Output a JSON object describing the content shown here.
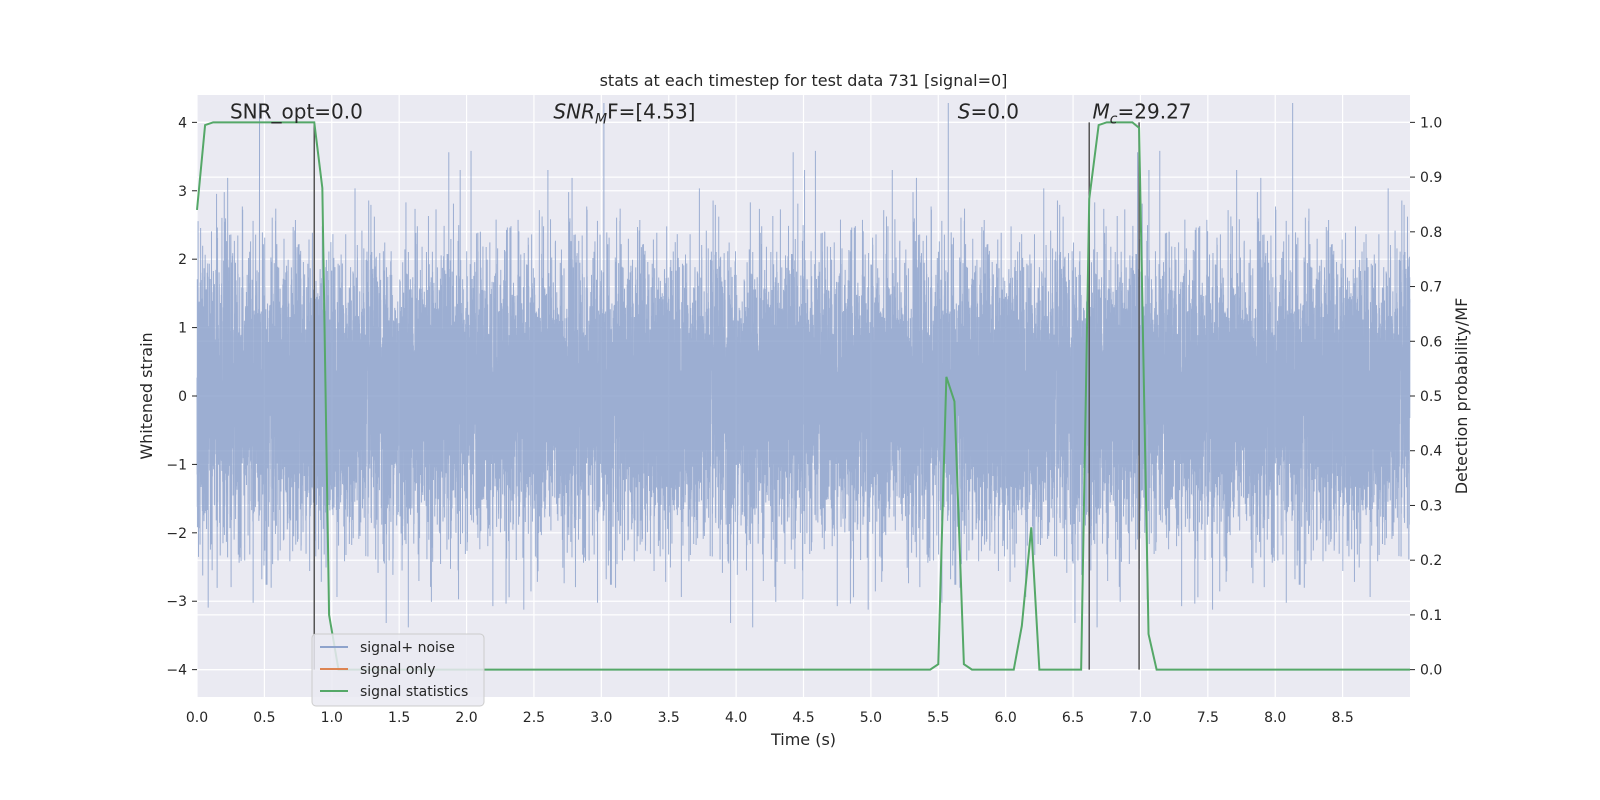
{
  "chart_data": {
    "type": "line",
    "title": "stats at each timestep for test data 731 [signal=0]",
    "xlabel": "Time (s)",
    "ylabel_left": "Whitened strain",
    "ylabel_right": "Detection probability/MF",
    "xlim": [
      0.0,
      9.0
    ],
    "ylim_left": [
      -4.4,
      4.4
    ],
    "ylim_right": [
      -0.05,
      1.05
    ],
    "x_ticks": [
      0.0,
      0.5,
      1.0,
      1.5,
      2.0,
      2.5,
      3.0,
      3.5,
      4.0,
      4.5,
      5.0,
      5.5,
      6.0,
      6.5,
      7.0,
      7.5,
      8.0,
      8.5
    ],
    "x_tick_labels": [
      "0.0",
      "0.5",
      "1.0",
      "1.5",
      "2.0",
      "2.5",
      "3.0",
      "3.5",
      "4.0",
      "4.5",
      "5.0",
      "5.5",
      "6.0",
      "6.5",
      "7.0",
      "7.5",
      "8.0",
      "8.5"
    ],
    "y_left_ticks": [
      -4,
      -3,
      -2,
      -1,
      0,
      1,
      2,
      3,
      4
    ],
    "y_left_tick_labels": [
      "−4",
      "−3",
      "−2",
      "−1",
      "0",
      "1",
      "2",
      "3",
      "4"
    ],
    "y_right_ticks": [
      0.0,
      0.1,
      0.2,
      0.3,
      0.4,
      0.5,
      0.6,
      0.7,
      0.8,
      0.9,
      1.0
    ],
    "y_right_tick_labels": [
      "0.0",
      "0.1",
      "0.2",
      "0.3",
      "0.4",
      "0.5",
      "0.6",
      "0.7",
      "0.8",
      "0.9",
      "1.0"
    ],
    "grid": true,
    "annotations": [
      {
        "text": "SNR_opt=0.0",
        "x": 0.2,
        "y": 4.1
      },
      {
        "text_main": "SNR",
        "text_sub": "M",
        "text_rest": "F=[4.53]",
        "x": 2.6,
        "y": 4.1
      },
      {
        "text_main": "S",
        "text_sub": "",
        "text_rest": "=0.0",
        "x": 5.6,
        "y": 4.1
      },
      {
        "text_main": "M",
        "text_sub": "c",
        "text_rest": "=29.27",
        "x": 6.6,
        "y": 4.1
      }
    ],
    "vlines": [
      {
        "x": 0.87,
        "y": [
          -4.0,
          4.0
        ]
      },
      {
        "x": 6.62,
        "y": [
          -4.0,
          4.0
        ]
      },
      {
        "x": 6.99,
        "y": [
          -4.0,
          4.0
        ]
      }
    ],
    "series": [
      {
        "name": "signal+ noise",
        "color": "#8ea3cc",
        "axis": "left",
        "style": "noise",
        "sample_rate_hz": 2048,
        "duration_s": 9.0,
        "envelope_sigma": 1.0
      },
      {
        "name": "signal only",
        "color": "#dd8452",
        "axis": "left",
        "x": [
          0.0,
          9.0
        ],
        "y": [
          0.0,
          0.0
        ]
      },
      {
        "name": "signal statistics",
        "color": "#55a868",
        "axis": "right",
        "x": [
          0.0,
          0.06,
          0.12,
          0.2,
          0.87,
          0.93,
          0.98,
          1.05,
          5.0,
          5.44,
          5.5,
          5.56,
          5.62,
          5.69,
          5.75,
          6.06,
          6.12,
          6.19,
          6.25,
          6.56,
          6.62,
          6.69,
          6.75,
          6.94,
          6.99,
          7.06,
          7.12,
          9.0
        ],
        "y": [
          0.84,
          0.995,
          1.0,
          1.0,
          1.0,
          0.88,
          0.1,
          0.0,
          0.0,
          0.0,
          0.01,
          0.535,
          0.49,
          0.01,
          0.0,
          0.0,
          0.08,
          0.26,
          0.0,
          0.0,
          0.86,
          0.995,
          1.0,
          1.0,
          0.99,
          0.065,
          0.0,
          0.0
        ]
      }
    ],
    "legend": {
      "placement": "lower-left",
      "entries": [
        {
          "label": "signal+ noise",
          "color": "#8ea3cc"
        },
        {
          "label": "signal only",
          "color": "#dd8452"
        },
        {
          "label": "signal statistics",
          "color": "#55a868"
        }
      ]
    }
  }
}
